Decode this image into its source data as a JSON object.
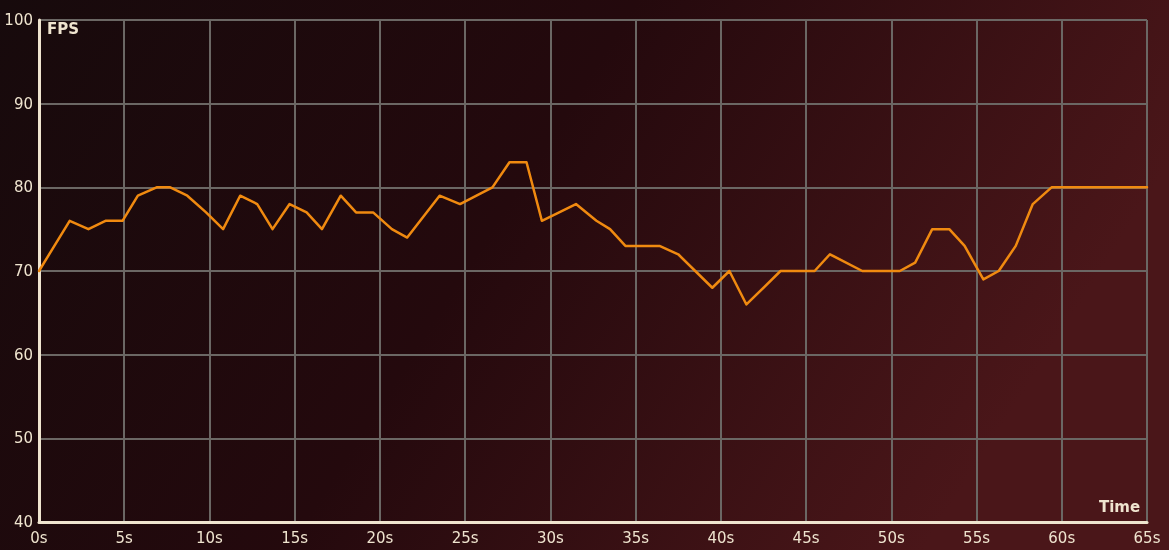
{
  "chart_data": {
    "type": "line",
    "xlabel": "Time",
    "ylabel": "FPS",
    "xlim": [
      0,
      65
    ],
    "xticks": [
      {
        "value": 0,
        "label": "0s"
      },
      {
        "value": 5,
        "label": "5s"
      },
      {
        "value": 10,
        "label": "10s"
      },
      {
        "value": 15,
        "label": "15s"
      },
      {
        "value": 20,
        "label": "20s"
      },
      {
        "value": 25,
        "label": "25s"
      },
      {
        "value": 30,
        "label": "30s"
      },
      {
        "value": 35,
        "label": "35s"
      },
      {
        "value": 40,
        "label": "40s"
      },
      {
        "value": 45,
        "label": "45s"
      },
      {
        "value": 50,
        "label": "50s"
      },
      {
        "value": 55,
        "label": "55s"
      },
      {
        "value": 60,
        "label": "60s"
      },
      {
        "value": 65,
        "label": "65s"
      }
    ],
    "ylim": [
      40,
      100
    ],
    "yticks": [
      40,
      50,
      60,
      70,
      80,
      90,
      100
    ],
    "grid": true,
    "marker": "none",
    "line_style": "solid",
    "series": [
      {
        "color": "#f08a10",
        "x": [
          0,
          1.8,
          2.9,
          3.9,
          4.9,
          5.8,
          6.9,
          7.7,
          8.7,
          9.8,
          10.8,
          11.8,
          12.8,
          13.7,
          14.7,
          15.7,
          16.6,
          17.7,
          18.6,
          19.6,
          20.7,
          21.6,
          23.5,
          24.7,
          26.6,
          27.6,
          28.6,
          29.5,
          31.5,
          32.7,
          33.5,
          34.4,
          36.4,
          37.5,
          39.5,
          40.5,
          41.5,
          43.5,
          45.5,
          46.4,
          48.3,
          50.5,
          51.4,
          52.4,
          53.4,
          54.3,
          55.4,
          56.3,
          57.3,
          58.3,
          59.4,
          65
        ],
        "values": [
          70,
          76,
          75,
          76,
          76,
          79,
          80,
          80,
          79,
          77,
          75,
          79,
          78,
          75,
          78,
          77,
          75,
          79,
          77,
          77,
          75,
          74,
          79,
          78,
          80,
          83,
          83,
          76,
          78,
          76,
          75,
          73,
          73,
          72,
          68,
          70,
          66,
          70,
          70,
          72,
          70,
          70,
          71,
          75,
          75,
          73,
          69,
          70,
          73,
          78,
          80,
          80
        ]
      }
    ]
  }
}
